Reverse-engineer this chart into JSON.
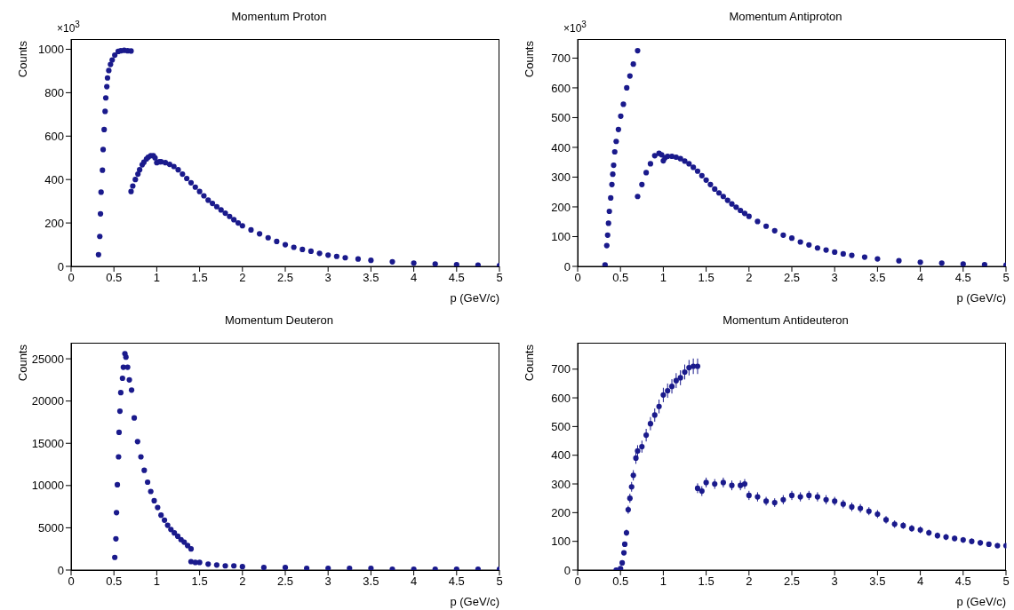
{
  "chart_data": [
    {
      "type": "scatter",
      "title": "Momentum Proton",
      "xlabel": "p (GeV/c)",
      "ylabel": "Counts",
      "annotations": [
        "×10$^{3}$"
      ],
      "xlim": [
        0,
        5
      ],
      "xticks": [
        0,
        0.5,
        1,
        1.5,
        2,
        2.5,
        3,
        3.5,
        4,
        4.5,
        5
      ],
      "ylim": [
        0,
        1047
      ],
      "yticks": [
        0,
        200,
        400,
        600,
        800,
        1000
      ],
      "marker": "circle",
      "series": [
        {
          "color": "#1a1a8c",
          "x": [
            0.32,
            0.335,
            0.343,
            0.35,
            0.366,
            0.374,
            0.386,
            0.397,
            0.405,
            0.417,
            0.425,
            0.44,
            0.46,
            0.48,
            0.51,
            0.55,
            0.58,
            0.62,
            0.66,
            0.7,
            0.7,
            0.72,
            0.75,
            0.78,
            0.8,
            0.83,
            0.85,
            0.88,
            0.9,
            0.93,
            0.96,
            0.98,
            1.0,
            1.03,
            1.05,
            1.1,
            1.15,
            1.2,
            1.25,
            1.3,
            1.35,
            1.4,
            1.45,
            1.5,
            1.55,
            1.6,
            1.65,
            1.7,
            1.75,
            1.8,
            1.85,
            1.9,
            1.95,
            2.0,
            2.1,
            2.2,
            2.3,
            2.4,
            2.5,
            2.6,
            2.7,
            2.8,
            2.9,
            3.0,
            3.1,
            3.2,
            3.35,
            3.5,
            3.75,
            4.0,
            4.25,
            4.5,
            4.75,
            5.0
          ],
          "values": [
            54,
            138,
            242,
            342,
            443,
            538,
            630,
            714,
            776,
            828,
            868,
            902,
            930,
            951,
            973,
            990,
            993,
            995,
            993,
            992,
            345,
            370,
            400,
            425,
            445,
            468,
            480,
            495,
            503,
            510,
            510,
            500,
            478,
            482,
            482,
            478,
            470,
            460,
            445,
            425,
            405,
            385,
            365,
            345,
            325,
            305,
            290,
            275,
            260,
            245,
            230,
            215,
            200,
            187,
            168,
            150,
            132,
            115,
            100,
            88,
            78,
            70,
            60,
            52,
            46,
            40,
            34,
            28,
            21,
            15,
            11,
            8,
            6,
            4
          ]
        }
      ]
    },
    {
      "type": "scatter",
      "title": "Momentum Antiproton",
      "xlabel": "p (GeV/c)",
      "ylabel": "Counts",
      "annotations": [
        "×10$^{3}$"
      ],
      "xlim": [
        0,
        5
      ],
      "xticks": [
        0,
        0.5,
        1,
        1.5,
        2,
        2.5,
        3,
        3.5,
        4,
        4.5,
        5
      ],
      "ylim": [
        0,
        764
      ],
      "yticks": [
        0,
        100,
        200,
        300,
        400,
        500,
        600,
        700
      ],
      "marker": "circle",
      "series": [
        {
          "color": "#1a1a8c",
          "x": [
            0.32,
            0.34,
            0.35,
            0.36,
            0.37,
            0.386,
            0.4,
            0.41,
            0.42,
            0.433,
            0.45,
            0.476,
            0.503,
            0.534,
            0.573,
            0.61,
            0.65,
            0.7,
            0.7,
            0.75,
            0.8,
            0.85,
            0.9,
            0.95,
            0.98,
            1.0,
            1.02,
            1.05,
            1.1,
            1.15,
            1.2,
            1.25,
            1.3,
            1.35,
            1.4,
            1.45,
            1.5,
            1.55,
            1.6,
            1.65,
            1.7,
            1.75,
            1.8,
            1.85,
            1.9,
            1.95,
            2.0,
            2.1,
            2.2,
            2.3,
            2.4,
            2.5,
            2.6,
            2.7,
            2.8,
            2.9,
            3.0,
            3.1,
            3.2,
            3.35,
            3.5,
            3.75,
            4.0,
            4.25,
            4.5,
            4.75,
            5.0
          ],
          "values": [
            5,
            70,
            105,
            145,
            185,
            230,
            275,
            310,
            340,
            385,
            420,
            460,
            505,
            545,
            600,
            640,
            680,
            725,
            235,
            275,
            315,
            345,
            372,
            380,
            375,
            355,
            365,
            370,
            370,
            367,
            362,
            354,
            345,
            333,
            320,
            305,
            290,
            275,
            260,
            247,
            235,
            222,
            210,
            199,
            188,
            178,
            168,
            151,
            135,
            120,
            105,
            95,
            82,
            72,
            62,
            55,
            48,
            42,
            37,
            31,
            25,
            19,
            14,
            11,
            8,
            6,
            4
          ]
        }
      ]
    },
    {
      "type": "scatter",
      "title": "Momentum Deuteron",
      "xlabel": "p (GeV/c)",
      "ylabel": "Counts",
      "xlim": [
        0,
        5
      ],
      "xticks": [
        0,
        0.5,
        1,
        1.5,
        2,
        2.5,
        3,
        3.5,
        4,
        4.5,
        5
      ],
      "ylim": [
        0,
        26900
      ],
      "yticks": [
        0,
        5000,
        10000,
        15000,
        20000,
        25000
      ],
      "marker": "circle",
      "series": [
        {
          "color": "#1a1a8c",
          "x": [
            0.51,
            0.523,
            0.53,
            0.54,
            0.554,
            0.56,
            0.57,
            0.58,
            0.6,
            0.61,
            0.628,
            0.64,
            0.66,
            0.68,
            0.706,
            0.737,
            0.776,
            0.815,
            0.854,
            0.893,
            0.93,
            0.97,
            1.01,
            1.05,
            1.09,
            1.127,
            1.165,
            1.205,
            1.245,
            1.283,
            1.32,
            1.36,
            1.4,
            1.4,
            1.45,
            1.5,
            1.6,
            1.7,
            1.8,
            1.9,
            2.0,
            2.25,
            2.5,
            2.75,
            3.0,
            3.25,
            3.5,
            3.75,
            4.0,
            4.25,
            4.5,
            4.75,
            5.0
          ],
          "values": [
            1500,
            3700,
            6800,
            10100,
            13400,
            16300,
            18800,
            21000,
            22700,
            24000,
            25600,
            25200,
            24000,
            22500,
            21300,
            18000,
            15200,
            13400,
            11800,
            10400,
            9300,
            8200,
            7400,
            6500,
            5900,
            5300,
            4800,
            4400,
            4000,
            3600,
            3300,
            2900,
            2500,
            1000,
            900,
            900,
            700,
            600,
            500,
            500,
            400,
            300,
            300,
            200,
            200,
            200,
            200,
            100,
            100,
            100,
            100,
            100,
            100
          ]
        }
      ]
    },
    {
      "type": "scatter",
      "title": "Momentum Antideuteron",
      "xlabel": "p (GeV/c)",
      "ylabel": "Counts",
      "xlim": [
        0,
        5
      ],
      "xticks": [
        0,
        0.5,
        1,
        1.5,
        2,
        2.5,
        3,
        3.5,
        4,
        4.5,
        5
      ],
      "ylim": [
        0,
        792
      ],
      "yticks": [
        0,
        100,
        200,
        300,
        400,
        500,
        600,
        700
      ],
      "marker": "circle",
      "series": [
        {
          "color": "#1a1a8c",
          "x": [
            0.45,
            0.5,
            0.52,
            0.54,
            0.55,
            0.57,
            0.59,
            0.61,
            0.63,
            0.65,
            0.68,
            0.7,
            0.75,
            0.8,
            0.85,
            0.9,
            0.95,
            1.0,
            1.05,
            1.1,
            1.15,
            1.2,
            1.25,
            1.3,
            1.35,
            1.4,
            1.4,
            1.45,
            1.5,
            1.6,
            1.7,
            1.8,
            1.9,
            1.95,
            2.0,
            2.1,
            2.2,
            2.3,
            2.4,
            2.5,
            2.6,
            2.7,
            2.8,
            2.9,
            3.0,
            3.1,
            3.2,
            3.3,
            3.4,
            3.5,
            3.6,
            3.7,
            3.8,
            3.9,
            4.0,
            4.1,
            4.2,
            4.3,
            4.4,
            4.5,
            4.6,
            4.7,
            4.8,
            4.9,
            5.0
          ],
          "values": [
            0,
            5,
            25,
            60,
            90,
            130,
            210,
            250,
            290,
            330,
            390,
            415,
            430,
            470,
            510,
            540,
            570,
            610,
            625,
            640,
            660,
            670,
            690,
            705,
            710,
            710,
            285,
            275,
            305,
            300,
            305,
            295,
            295,
            300,
            260,
            255,
            240,
            235,
            245,
            260,
            255,
            260,
            255,
            245,
            240,
            230,
            220,
            215,
            205,
            195,
            175,
            160,
            155,
            145,
            140,
            130,
            120,
            115,
            110,
            105,
            100,
            95,
            90,
            85,
            85
          ],
          "errors": [
            null,
            null,
            null,
            8,
            9,
            11,
            14,
            16,
            17,
            18,
            20,
            20,
            21,
            22,
            23,
            23,
            24,
            25,
            25,
            25,
            26,
            26,
            26,
            27,
            27,
            27,
            17,
            17,
            17,
            17,
            17,
            17,
            17,
            17,
            16,
            16,
            15,
            15,
            16,
            16,
            16,
            16,
            16,
            16,
            15,
            15,
            15,
            15,
            14,
            14,
            13,
            13,
            12,
            12,
            12,
            11,
            11,
            11,
            10,
            10,
            10,
            10,
            9,
            9,
            9
          ]
        }
      ]
    }
  ]
}
